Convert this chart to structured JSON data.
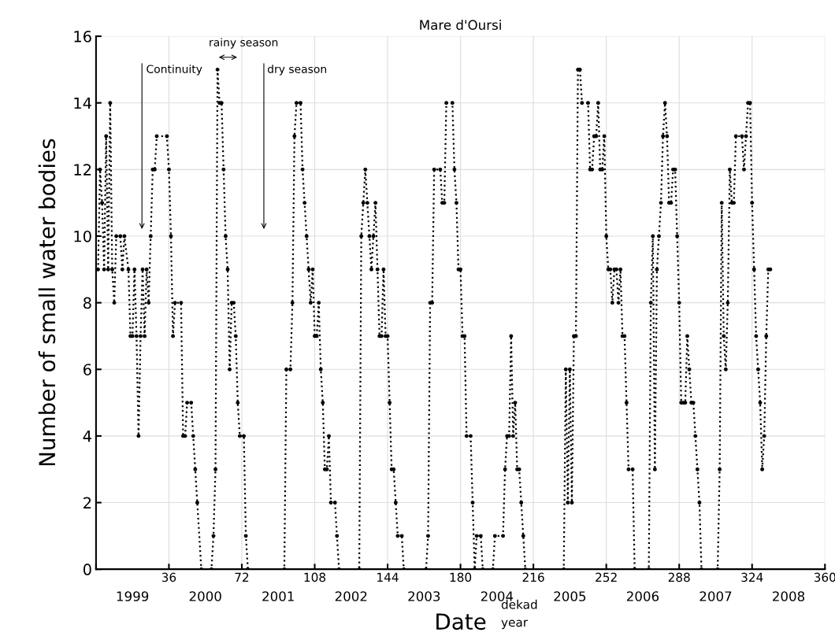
{
  "chart_data": {
    "type": "line",
    "title": "Mare d'Oursi",
    "xlabel": "Date",
    "ylabel": "Number of small water bodies",
    "xlim": [
      0,
      360
    ],
    "ylim": [
      0,
      16
    ],
    "xticks": [
      {
        "value": 0,
        "label": null
      },
      36,
      72,
      108,
      144,
      180,
      216,
      252,
      288,
      324,
      360
    ],
    "x2lim": [
      1998.5,
      2008.5
    ],
    "x2ticks": [
      1999,
      2000,
      2001,
      2002,
      2003,
      2004,
      2005,
      2006,
      2007,
      2008
    ],
    "yticks": [
      0,
      2,
      4,
      6,
      8,
      10,
      12,
      14,
      16
    ],
    "grid": true,
    "marker": "circle",
    "line_style": "dotted",
    "series": [
      {
        "color": "#000000",
        "x": [
          1,
          2,
          3,
          4,
          5,
          6,
          7,
          8,
          9,
          10,
          12,
          13,
          14,
          16,
          17,
          18,
          19,
          20,
          21,
          22,
          23,
          24,
          25,
          26,
          27,
          28,
          29,
          30,
          35,
          36,
          37,
          38,
          39,
          42,
          43,
          44,
          45,
          47,
          48,
          49,
          50,
          52,
          57,
          58,
          59,
          60,
          61,
          62,
          63,
          64,
          65,
          66,
          67,
          68,
          69,
          70,
          71,
          73,
          74,
          75,
          93,
          94,
          96,
          97,
          98,
          99,
          101,
          102,
          103,
          104,
          105,
          106,
          107,
          108,
          109,
          110,
          111,
          112,
          113,
          114,
          115,
          116,
          118,
          119,
          120,
          130,
          131,
          132,
          133,
          134,
          135,
          136,
          137,
          138,
          139,
          140,
          141,
          142,
          143,
          144,
          145,
          146,
          147,
          148,
          149,
          151,
          152,
          163,
          164,
          165,
          166,
          167,
          170,
          171,
          172,
          173,
          176,
          177,
          178,
          179,
          180,
          181,
          182,
          183,
          185,
          186,
          187,
          188,
          190,
          191,
          196,
          197,
          201,
          202,
          203,
          204,
          205,
          206,
          207,
          208,
          209,
          210,
          211,
          212,
          231,
          232,
          233,
          234,
          235,
          236,
          237,
          238,
          239,
          240,
          243,
          244,
          245,
          246,
          247,
          248,
          249,
          250,
          251,
          252,
          253,
          254,
          255,
          256,
          257,
          258,
          259,
          260,
          261,
          262,
          263,
          265,
          266,
          273,
          274,
          275,
          276,
          277,
          278,
          279,
          280,
          281,
          282,
          283,
          284,
          285,
          286,
          287,
          288,
          289,
          290,
          291,
          292,
          293,
          294,
          295,
          296,
          297,
          298,
          299,
          307,
          308,
          309,
          310,
          311,
          312,
          313,
          314,
          315,
          316,
          319,
          320,
          321,
          322,
          323,
          324,
          325,
          326,
          327,
          328,
          329,
          330,
          331,
          332,
          333
        ],
        "values": [
          9,
          12,
          11,
          9,
          13,
          9,
          14,
          9,
          8,
          10,
          10,
          9,
          10,
          9,
          7,
          7,
          9,
          7,
          4,
          7,
          9,
          7,
          9,
          8,
          10,
          12,
          12,
          13,
          13,
          12,
          10,
          7,
          8,
          8,
          4,
          4,
          5,
          5,
          4,
          3,
          2,
          0,
          0,
          1,
          3,
          15,
          14,
          14,
          12,
          10,
          9,
          6,
          8,
          8,
          7,
          5,
          4,
          4,
          1,
          0,
          0,
          6,
          6,
          8,
          13,
          14,
          14,
          12,
          11,
          10,
          9,
          8,
          9,
          7,
          7,
          8,
          6,
          5,
          3,
          3,
          4,
          2,
          2,
          1,
          0,
          0,
          10,
          11,
          12,
          11,
          10,
          9,
          10,
          11,
          9,
          7,
          7,
          9,
          7,
          7,
          5,
          3,
          3,
          2,
          1,
          1,
          0,
          0,
          1,
          8,
          8,
          12,
          12,
          11,
          11,
          14,
          14,
          12,
          11,
          9,
          9,
          7,
          7,
          4,
          4,
          2,
          0,
          1,
          1,
          0,
          0,
          1,
          1,
          3,
          4,
          4,
          7,
          4,
          5,
          3,
          3,
          2,
          1,
          0,
          0,
          6,
          2,
          6,
          2,
          7,
          7,
          15,
          15,
          14,
          14,
          12,
          12,
          13,
          13,
          14,
          12,
          12,
          13,
          10,
          9,
          9,
          8,
          9,
          9,
          8,
          9,
          7,
          7,
          5,
          3,
          3,
          0,
          0,
          8,
          10,
          3,
          9,
          10,
          11,
          13,
          14,
          13,
          11,
          11,
          12,
          12,
          10,
          8,
          5,
          5,
          5,
          7,
          6,
          5,
          5,
          4,
          3,
          2,
          0,
          0,
          3,
          11,
          7,
          6,
          8,
          12,
          11,
          11,
          13,
          13,
          12,
          13,
          14,
          14,
          11,
          9,
          7,
          6,
          5,
          3,
          4,
          7,
          9,
          9
        ]
      }
    ],
    "annotations": [
      "Continuity",
      "rainy season",
      "dry season",
      "dekad",
      "year"
    ]
  }
}
